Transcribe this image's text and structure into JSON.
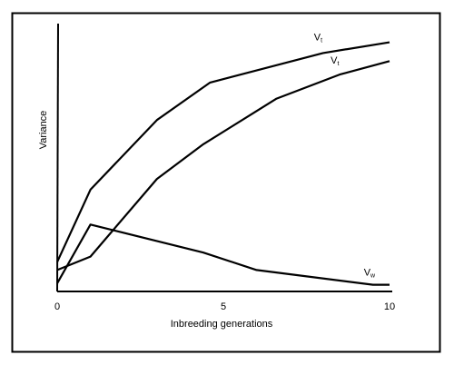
{
  "colors": {
    "ink": "#000000",
    "background": "#ffffff"
  },
  "chart_data": {
    "type": "line",
    "title": "",
    "xlabel": "Inbreeding generations",
    "ylabel": "Variance",
    "xlim": [
      0,
      10
    ],
    "ylim": [
      0,
      10
    ],
    "x_ticks": [
      {
        "value": 0,
        "label": "0"
      },
      {
        "value": 5,
        "label": "5"
      },
      {
        "value": 10,
        "label": "10"
      }
    ],
    "y_ticks_shown": false,
    "grid": false,
    "legend": "none (series labelled directly on the lines)",
    "series": [
      {
        "name": "Vt",
        "label_main": "V",
        "label_sub": "t",
        "x": [
          0,
          1,
          3,
          4.6,
          8,
          10
        ],
        "y": [
          1.1,
          3.8,
          6.4,
          7.8,
          8.9,
          9.3
        ]
      },
      {
        "name": "Vt",
        "label_main": "V",
        "label_sub": "t",
        "x": [
          0,
          1,
          3,
          4.4,
          6.6,
          8.5,
          10
        ],
        "y": [
          0.8,
          1.3,
          4.2,
          5.5,
          7.2,
          8.1,
          8.6
        ]
      },
      {
        "name": "Vw",
        "label_main": "V",
        "label_sub": "w",
        "x": [
          0,
          1,
          4.4,
          6,
          9.5,
          10
        ],
        "y": [
          0.3,
          2.5,
          1.45,
          0.8,
          0.25,
          0.25
        ]
      }
    ]
  }
}
